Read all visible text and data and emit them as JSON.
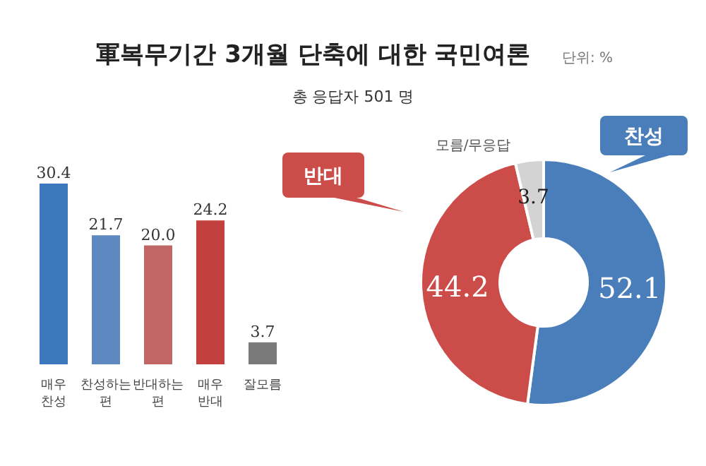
{
  "chart_data": [
    {
      "type": "bar",
      "title": "軍복무기간 3개월 단축에 대한 국민여론",
      "subtitle": "총 응답자 501 명",
      "annotations": [
        "단위: %"
      ],
      "categories": [
        "매우 찬성",
        "찬성하는 편",
        "반대하는 편",
        "매우 반대",
        "잘모름"
      ],
      "values": [
        30.4,
        21.7,
        20.0,
        24.2,
        3.7
      ],
      "colors": [
        "#3d78bd",
        "#5e88c0",
        "#c06664",
        "#c2403d",
        "#7a7a7a"
      ],
      "value_labels": [
        "30.4",
        "21.7",
        "20.0",
        "24.2",
        "3.7"
      ]
    },
    {
      "type": "donut",
      "categories": [
        "찬성",
        "반대",
        "모름/무응답"
      ],
      "values": [
        52.1,
        44.2,
        3.7
      ],
      "colors": [
        "#4a7ebb",
        "#cc4c49",
        "#d3d3d3"
      ],
      "data_labels": true
    }
  ]
}
